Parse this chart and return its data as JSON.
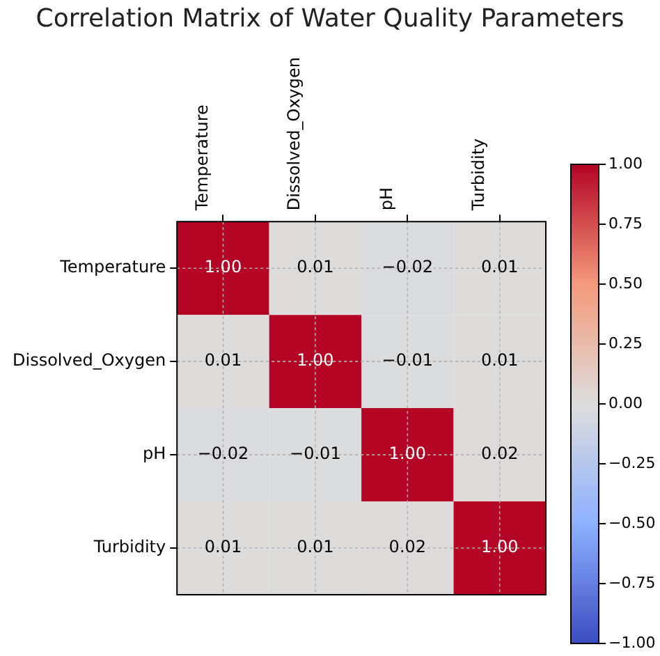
{
  "chart_data": {
    "type": "heatmap",
    "title": "Correlation Matrix of Water Quality Parameters",
    "categories": [
      "Temperature",
      "Dissolved_Oxygen",
      "pH",
      "Turbidity"
    ],
    "y_categories": [
      "Temperature",
      "Dissolved_Oxygen",
      "pH",
      "Turbidity"
    ],
    "cells": [
      [
        1.0,
        0.01,
        -0.02,
        0.01
      ],
      [
        0.01,
        1.0,
        -0.01,
        0.01
      ],
      [
        -0.02,
        -0.01,
        1.0,
        0.02
      ],
      [
        0.01,
        0.01,
        0.02,
        1.0
      ]
    ],
    "cell_labels": [
      [
        "1.00",
        "0.01",
        "−0.02",
        "0.01"
      ],
      [
        "0.01",
        "1.00",
        "−0.01",
        "0.01"
      ],
      [
        "−0.02",
        "−0.01",
        "1.00",
        "0.02"
      ],
      [
        "0.01",
        "0.01",
        "0.02",
        "1.00"
      ]
    ],
    "clim": [
      -1,
      1
    ],
    "cticks": [
      {
        "value": 1,
        "label": "1.00"
      },
      {
        "value": 0.75,
        "label": "0.75"
      },
      {
        "value": 0.5,
        "label": "0.50"
      },
      {
        "value": 0.25,
        "label": "0.25"
      },
      {
        "value": 0,
        "label": "0.00"
      },
      {
        "value": -0.25,
        "label": "−0.25"
      },
      {
        "value": -0.5,
        "label": "−0.50"
      },
      {
        "value": -0.75,
        "label": "−0.75"
      },
      {
        "value": -1,
        "label": "−1.00"
      }
    ],
    "grid": true
  }
}
